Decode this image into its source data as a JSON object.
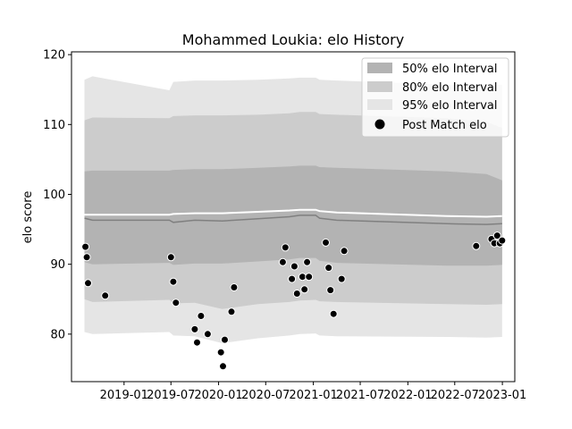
{
  "chart_data": {
    "type": "scatter",
    "title": "Mohammed Loukia: elo History",
    "xlabel": "",
    "ylabel": "elo score",
    "xlim": [
      "2018-06-12",
      "2023-02-18"
    ],
    "ylim": [
      73.2,
      120.4
    ],
    "x_ticks": [
      "2019-01",
      "2019-07",
      "2020-01",
      "2020-07",
      "2021-01",
      "2021-07",
      "2022-01",
      "2022-07",
      "2023-01"
    ],
    "y_ticks": [
      80,
      90,
      100,
      110,
      120
    ],
    "legend_position": "top-right",
    "legend": [
      "50% elo Interval",
      "80% elo Interval",
      "95% elo Interval",
      "Post Match elo"
    ],
    "colors": {
      "band_50": "#b3b3b3",
      "band_80": "#cccccc",
      "band_95": "#e5e5e5",
      "mean_line": "#808080",
      "upper_line": "#ffffff",
      "points": "#000000"
    },
    "bands": {
      "x": [
        "2018-08-01",
        "2018-09-01",
        "2019-06-25",
        "2019-07-10",
        "2019-10-01",
        "2020-01-15",
        "2020-06-01",
        "2020-10-01",
        "2020-11-10",
        "2021-01-10",
        "2021-01-25",
        "2021-04-01",
        "2022-06-01",
        "2022-11-01",
        "2022-12-31"
      ],
      "mean": [
        96.6,
        96.3,
        96.3,
        96.0,
        96.3,
        96.2,
        96.5,
        96.8,
        97.0,
        97.0,
        96.6,
        96.3,
        95.8,
        95.7,
        95.8
      ],
      "upper": [
        97.1,
        97.1,
        97.1,
        97.2,
        97.3,
        97.3,
        97.5,
        97.7,
        97.8,
        97.8,
        97.6,
        97.4,
        96.9,
        96.8,
        96.9
      ],
      "i50_low": [
        90.3,
        90.0,
        90.2,
        89.9,
        90.1,
        90.1,
        90.4,
        90.7,
        90.9,
        90.9,
        90.5,
        90.2,
        89.8,
        89.8,
        89.9
      ],
      "i50_high": [
        103.3,
        103.4,
        103.4,
        103.5,
        103.6,
        103.6,
        103.8,
        104.0,
        104.1,
        104.1,
        103.9,
        103.8,
        103.3,
        102.9,
        102.0
      ],
      "i80_low": [
        85.0,
        84.6,
        84.9,
        84.4,
        84.5,
        83.6,
        84.3,
        84.6,
        84.8,
        84.9,
        84.7,
        84.6,
        84.3,
        84.2,
        84.3
      ],
      "i80_high": [
        110.6,
        111.0,
        110.9,
        111.2,
        111.3,
        111.3,
        111.4,
        111.6,
        111.8,
        111.8,
        111.5,
        111.4,
        110.9,
        110.4,
        109.5
      ],
      "i95_low": [
        80.3,
        80.0,
        80.3,
        79.8,
        79.7,
        78.7,
        79.4,
        79.8,
        80.0,
        80.1,
        79.8,
        79.7,
        79.6,
        79.5,
        79.6
      ],
      "i95_high": [
        116.4,
        116.9,
        114.9,
        116.1,
        116.3,
        116.3,
        116.4,
        116.6,
        116.7,
        116.7,
        116.4,
        116.3,
        115.7,
        115.7,
        115.7
      ]
    },
    "points": [
      {
        "x": "2018-08-05",
        "y": 92.5
      },
      {
        "x": "2018-08-10",
        "y": 91.0
      },
      {
        "x": "2018-08-15",
        "y": 87.3
      },
      {
        "x": "2018-10-20",
        "y": 85.5
      },
      {
        "x": "2019-07-01",
        "y": 91.0
      },
      {
        "x": "2019-07-10",
        "y": 87.5
      },
      {
        "x": "2019-07-20",
        "y": 84.5
      },
      {
        "x": "2019-10-01",
        "y": 80.7
      },
      {
        "x": "2019-10-10",
        "y": 78.8
      },
      {
        "x": "2019-10-25",
        "y": 82.6
      },
      {
        "x": "2019-11-20",
        "y": 80.0
      },
      {
        "x": "2020-01-10",
        "y": 77.4
      },
      {
        "x": "2020-01-18",
        "y": 75.4
      },
      {
        "x": "2020-01-25",
        "y": 79.2
      },
      {
        "x": "2020-02-20",
        "y": 83.2
      },
      {
        "x": "2020-03-01",
        "y": 86.7
      },
      {
        "x": "2020-09-05",
        "y": 90.3
      },
      {
        "x": "2020-09-15",
        "y": 92.4
      },
      {
        "x": "2020-10-10",
        "y": 87.9
      },
      {
        "x": "2020-10-20",
        "y": 89.7
      },
      {
        "x": "2020-10-30",
        "y": 85.8
      },
      {
        "x": "2020-11-20",
        "y": 88.2
      },
      {
        "x": "2020-11-28",
        "y": 86.4
      },
      {
        "x": "2020-12-08",
        "y": 90.3
      },
      {
        "x": "2020-12-15",
        "y": 88.2
      },
      {
        "x": "2021-02-18",
        "y": 93.1
      },
      {
        "x": "2021-03-01",
        "y": 89.5
      },
      {
        "x": "2021-03-08",
        "y": 86.3
      },
      {
        "x": "2021-03-20",
        "y": 82.9
      },
      {
        "x": "2021-04-20",
        "y": 87.9
      },
      {
        "x": "2021-04-30",
        "y": 91.9
      },
      {
        "x": "2022-09-22",
        "y": 92.6
      },
      {
        "x": "2022-11-20",
        "y": 93.6
      },
      {
        "x": "2022-12-01",
        "y": 93.0
      },
      {
        "x": "2022-12-12",
        "y": 94.1
      },
      {
        "x": "2022-12-22",
        "y": 93.0
      },
      {
        "x": "2022-12-31",
        "y": 93.4
      }
    ]
  }
}
